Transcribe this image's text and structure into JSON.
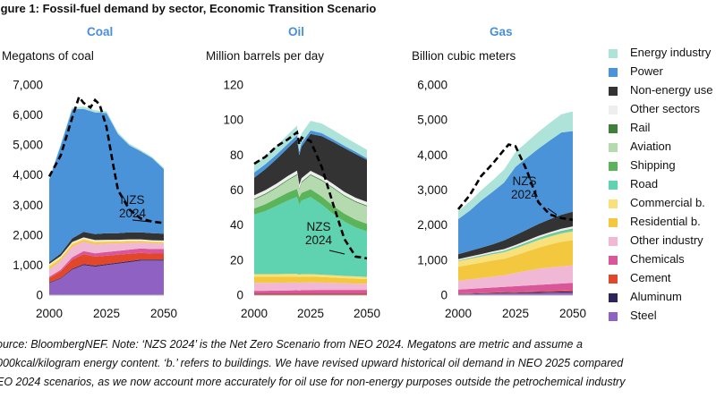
{
  "figure_title": "igure 1: Fossil-fuel demand by sector, Economic Transition Scenario",
  "legend": [
    {
      "label": "Energy industry",
      "color": "#aee3da"
    },
    {
      "label": "Power",
      "color": "#4a93d9"
    },
    {
      "label": "Non-energy use",
      "color": "#333333"
    },
    {
      "label": "Other sectors",
      "color": "#eeeeee"
    },
    {
      "label": "Rail",
      "color": "#3f7f3a"
    },
    {
      "label": "Aviation",
      "color": "#b6dab0"
    },
    {
      "label": "Shipping",
      "color": "#5bb35a"
    },
    {
      "label": "Road",
      "color": "#5fd2b0"
    },
    {
      "label": "Commercial b.",
      "color": "#f8e07a"
    },
    {
      "label": "Residential b.",
      "color": "#f4c83e"
    },
    {
      "label": "Other industry",
      "color": "#f1b8d6"
    },
    {
      "label": "Chemicals",
      "color": "#d9569b"
    },
    {
      "label": "Cement",
      "color": "#e2462b"
    },
    {
      "label": "Aluminum",
      "color": "#2e2457"
    },
    {
      "label": "Steel",
      "color": "#8e61c2"
    }
  ],
  "footnote": [
    "ource: BloombergNEF. Note: ‘NZS 2024’ is the Net Zero Scenario from NEO 2024. Megatons are metric and assume a",
    "000kcal/kilogram energy content. ‘b.’ refers to buildings. We have revised upward historical oil demand in NEO 2025 compared",
    "EO 2024 scenarios, as we now account more accurately for oil use for non-energy purposes outside the petrochemical industry"
  ],
  "chart_data": [
    {
      "type": "area",
      "title": "Coal",
      "ylabel": "Megatons of coal",
      "x_ticks": [
        "2000",
        "2025",
        "2050"
      ],
      "y_ticks": [
        "0",
        "1,000",
        "2,000",
        "3,000",
        "4,000",
        "5,000",
        "6,000",
        "7,000"
      ],
      "xlim": [
        2000,
        2050
      ],
      "ylim": [
        0,
        7000
      ],
      "x": [
        2000,
        2005,
        2010,
        2015,
        2020,
        2025,
        2030,
        2035,
        2040,
        2045,
        2050
      ],
      "series": [
        {
          "name": "Steel",
          "values": [
            400,
            550,
            850,
            1000,
            950,
            1000,
            1050,
            1100,
            1150,
            1150,
            1150
          ]
        },
        {
          "name": "Aluminum",
          "values": [
            20,
            25,
            30,
            35,
            35,
            35,
            35,
            35,
            35,
            35,
            35
          ]
        },
        {
          "name": "Cement",
          "values": [
            150,
            220,
            300,
            330,
            300,
            280,
            260,
            240,
            220,
            200,
            200
          ]
        },
        {
          "name": "Chemicals",
          "values": [
            40,
            50,
            80,
            100,
            110,
            120,
            130,
            140,
            150,
            150,
            150
          ]
        },
        {
          "name": "Other industry",
          "values": [
            250,
            300,
            350,
            320,
            300,
            280,
            250,
            230,
            200,
            190,
            180
          ]
        },
        {
          "name": "Residential b.",
          "values": [
            80,
            70,
            70,
            60,
            60,
            55,
            50,
            45,
            40,
            40,
            40
          ]
        },
        {
          "name": "Commercial b.",
          "values": [
            60,
            50,
            50,
            40,
            40,
            35,
            30,
            30,
            25,
            25,
            25
          ]
        },
        {
          "name": "Other sectors",
          "values": [
            40,
            40,
            40,
            40,
            40,
            40,
            40,
            40,
            40,
            40,
            40
          ]
        },
        {
          "name": "Non-energy use",
          "values": [
            60,
            80,
            120,
            180,
            200,
            220,
            220,
            230,
            230,
            230,
            230
          ]
        },
        {
          "name": "Power",
          "values": [
            2750,
            3600,
            4300,
            4100,
            4050,
            4000,
            3300,
            2900,
            2700,
            2500,
            2150
          ]
        },
        {
          "name": "Energy industry",
          "values": [
            30,
            40,
            60,
            70,
            70,
            60,
            55,
            50,
            45,
            40,
            35
          ]
        }
      ],
      "nzs_2024": {
        "x": [
          2000,
          2005,
          2010,
          2013,
          2015,
          2018,
          2020,
          2022,
          2025,
          2028,
          2030,
          2035,
          2040,
          2045,
          2050
        ],
        "values": [
          3950,
          4650,
          5900,
          6600,
          6400,
          6250,
          6500,
          6350,
          5600,
          4300,
          3500,
          2850,
          2550,
          2450,
          2400
        ]
      },
      "annotation": [
        "NZS",
        "2024"
      ]
    },
    {
      "type": "area",
      "title": "Oil",
      "ylabel": "Million barrels per day",
      "x_ticks": [
        "2000",
        "2025",
        "2050"
      ],
      "y_ticks": [
        "0",
        "20",
        "40",
        "60",
        "80",
        "100",
        "120"
      ],
      "xlim": [
        2000,
        2050
      ],
      "ylim": [
        0,
        120
      ],
      "x": [
        2000,
        2005,
        2010,
        2015,
        2019,
        2020,
        2021,
        2025,
        2030,
        2035,
        2040,
        2045,
        2050
      ],
      "series": [
        {
          "name": "Steel",
          "values": [
            0.3,
            0.3,
            0.3,
            0.3,
            0.3,
            0.3,
            0.3,
            0.3,
            0.3,
            0.3,
            0.3,
            0.3,
            0.3
          ]
        },
        {
          "name": "Aluminum",
          "values": [
            0.2,
            0.2,
            0.2,
            0.2,
            0.2,
            0.2,
            0.2,
            0.2,
            0.2,
            0.2,
            0.2,
            0.2,
            0.2
          ]
        },
        {
          "name": "Cement",
          "values": [
            0.5,
            0.5,
            0.5,
            0.5,
            0.5,
            0.5,
            0.5,
            0.5,
            0.5,
            0.5,
            0.5,
            0.5,
            0.5
          ]
        },
        {
          "name": "Chemicals",
          "values": [
            1.5,
            1.5,
            1.6,
            1.7,
            1.8,
            1.7,
            1.8,
            1.9,
            2.0,
            2.0,
            2.0,
            2.0,
            2.0
          ]
        },
        {
          "name": "Other industry",
          "values": [
            4.5,
            4.5,
            4.5,
            4.5,
            4.5,
            4.3,
            4.4,
            4.4,
            4.2,
            4.0,
            3.8,
            3.6,
            3.5
          ]
        },
        {
          "name": "Residential b.",
          "values": [
            3.5,
            3.5,
            3.4,
            3.4,
            3.3,
            3.3,
            3.3,
            3.2,
            3.1,
            3.0,
            2.9,
            2.8,
            2.7
          ]
        },
        {
          "name": "Commercial b.",
          "values": [
            1.5,
            1.5,
            1.5,
            1.5,
            1.5,
            1.4,
            1.5,
            1.5,
            1.4,
            1.4,
            1.3,
            1.3,
            1.2
          ]
        },
        {
          "name": "Road",
          "values": [
            34,
            36,
            39,
            42,
            44,
            40,
            42,
            44,
            40,
            35,
            31,
            28,
            26
          ]
        },
        {
          "name": "Shipping",
          "values": [
            3.5,
            4.0,
            4.3,
            4.5,
            4.5,
            4.2,
            4.3,
            4.5,
            4.6,
            4.6,
            4.5,
            4.4,
            4.3
          ]
        },
        {
          "name": "Aviation",
          "values": [
            5.0,
            5.5,
            6.0,
            7.0,
            8.0,
            4.5,
            6.0,
            8.0,
            9.0,
            10.0,
            10.0,
            10.0,
            10.0
          ]
        },
        {
          "name": "Rail",
          "values": [
            0.5,
            0.5,
            0.5,
            0.5,
            0.5,
            0.5,
            0.5,
            0.5,
            0.5,
            0.5,
            0.5,
            0.5,
            0.5
          ]
        },
        {
          "name": "Other sectors",
          "values": [
            2.0,
            2.0,
            2.0,
            2.0,
            2.0,
            2.0,
            2.0,
            2.0,
            2.0,
            2.0,
            2.0,
            2.0,
            2.0
          ]
        },
        {
          "name": "Non-energy use",
          "values": [
            10,
            12,
            14,
            16,
            18,
            17,
            18,
            21,
            23,
            24,
            25,
            25,
            24
          ]
        },
        {
          "name": "Power",
          "values": [
            3.0,
            2.8,
            2.6,
            2.4,
            2.2,
            2.1,
            2.1,
            2.0,
            1.7,
            1.5,
            1.3,
            1.2,
            1.0
          ]
        },
        {
          "name": "Energy industry",
          "values": [
            4.5,
            4.7,
            5.0,
            5.3,
            5.5,
            5.2,
            5.3,
            5.5,
            5.5,
            5.3,
            5.1,
            4.9,
            4.8
          ]
        }
      ],
      "nzs_2024": {
        "x": [
          2000,
          2005,
          2010,
          2015,
          2019,
          2020,
          2021,
          2025,
          2030,
          2035,
          2040,
          2045,
          2050
        ],
        "values": [
          75,
          79,
          85,
          89,
          93,
          86,
          90,
          88,
          73,
          52,
          32,
          22,
          21
        ]
      },
      "annotation": [
        "NZS",
        "2024"
      ]
    },
    {
      "type": "area",
      "title": "Gas",
      "ylabel": "Billion cubic meters",
      "x_ticks": [
        "2000",
        "2025",
        "2050"
      ],
      "y_ticks": [
        "0",
        "1,000",
        "2,000",
        "3,000",
        "4,000",
        "5,000",
        "6,000"
      ],
      "xlim": [
        2000,
        2050
      ],
      "ylim": [
        0,
        6000
      ],
      "x": [
        2000,
        2005,
        2010,
        2015,
        2020,
        2025,
        2030,
        2035,
        2040,
        2045,
        2050
      ],
      "series": [
        {
          "name": "Steel",
          "values": [
            30,
            35,
            40,
            45,
            50,
            55,
            60,
            65,
            70,
            75,
            80
          ]
        },
        {
          "name": "Aluminum",
          "values": [
            10,
            12,
            14,
            16,
            18,
            20,
            22,
            24,
            26,
            28,
            30
          ]
        },
        {
          "name": "Cement",
          "values": [
            10,
            12,
            14,
            16,
            18,
            20,
            22,
            24,
            26,
            28,
            30
          ]
        },
        {
          "name": "Chemicals",
          "values": [
            110,
            120,
            130,
            140,
            150,
            160,
            170,
            180,
            190,
            200,
            210
          ]
        },
        {
          "name": "Other industry",
          "values": [
            250,
            270,
            290,
            310,
            330,
            380,
            420,
            460,
            480,
            490,
            500
          ]
        },
        {
          "name": "Residential b.",
          "values": [
            400,
            420,
            440,
            460,
            470,
            500,
            550,
            600,
            650,
            700,
            720
          ]
        },
        {
          "name": "Commercial b.",
          "values": [
            160,
            165,
            170,
            180,
            190,
            200,
            210,
            220,
            230,
            240,
            250
          ]
        },
        {
          "name": "Road",
          "values": [
            10,
            15,
            20,
            25,
            30,
            35,
            40,
            45,
            50,
            55,
            60
          ]
        },
        {
          "name": "Shipping",
          "values": [
            5,
            5,
            5,
            5,
            6,
            8,
            10,
            12,
            14,
            16,
            18
          ]
        },
        {
          "name": "Aviation",
          "values": [
            0,
            0,
            0,
            0,
            0,
            0,
            0,
            0,
            0,
            0,
            0
          ]
        },
        {
          "name": "Rail",
          "values": [
            5,
            5,
            5,
            5,
            5,
            5,
            5,
            5,
            5,
            5,
            5
          ]
        },
        {
          "name": "Other sectors",
          "values": [
            40,
            42,
            44,
            46,
            48,
            50,
            52,
            54,
            56,
            58,
            60
          ]
        },
        {
          "name": "Non-energy use",
          "values": [
            140,
            160,
            180,
            200,
            250,
            280,
            310,
            340,
            370,
            400,
            420
          ]
        },
        {
          "name": "Power",
          "values": [
            1000,
            1150,
            1350,
            1500,
            1650,
            1950,
            2050,
            2150,
            2250,
            2350,
            2300
          ]
        },
        {
          "name": "Energy industry",
          "values": [
            230,
            260,
            290,
            330,
            370,
            420,
            450,
            480,
            500,
            520,
            560
          ]
        }
      ],
      "nzs_2024": {
        "x": [
          2000,
          2005,
          2010,
          2015,
          2020,
          2022,
          2025,
          2030,
          2035,
          2040,
          2045,
          2050
        ],
        "values": [
          2450,
          2850,
          3400,
          3750,
          4150,
          4300,
          4250,
          3550,
          2650,
          2300,
          2200,
          2150
        ]
      },
      "annotation": [
        "NZS",
        "2024"
      ]
    }
  ]
}
